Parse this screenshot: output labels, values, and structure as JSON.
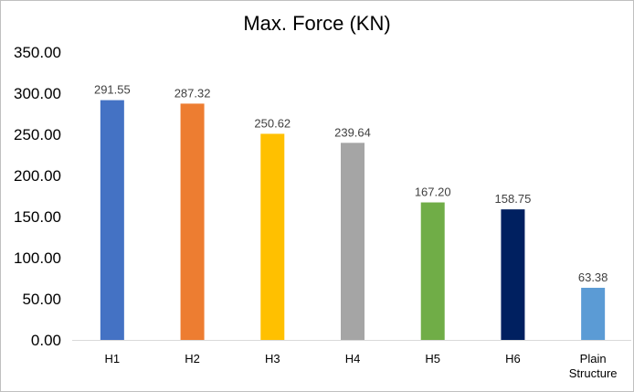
{
  "chart_data": {
    "type": "bar",
    "title": "Max. Force (KN)",
    "xlabel": "",
    "ylabel": "",
    "ylim": [
      0,
      350
    ],
    "yticks": [
      0,
      50,
      100,
      150,
      200,
      250,
      300,
      350
    ],
    "ytick_labels": [
      "0.00",
      "50.00",
      "100.00",
      "150.00",
      "200.00",
      "250.00",
      "300.00",
      "350.00"
    ],
    "grid": false,
    "legend": "none",
    "categories": [
      "H1",
      "H2",
      "H3",
      "H4",
      "H5",
      "H6",
      "Plain Structure"
    ],
    "values": [
      291.55,
      287.32,
      250.62,
      239.64,
      167.2,
      158.75,
      63.38
    ],
    "data_labels": [
      "291.55",
      "287.32",
      "250.62",
      "239.64",
      "167.20",
      "158.75",
      "63.38"
    ],
    "colors": [
      "#4472c4",
      "#ed7d31",
      "#ffc000",
      "#a5a5a5",
      "#70ad47",
      "#002060",
      "#5b9bd5"
    ]
  }
}
